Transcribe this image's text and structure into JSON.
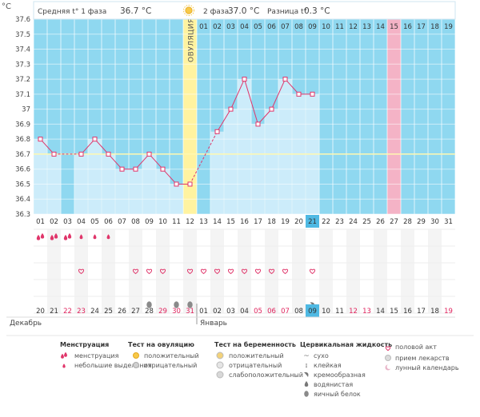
{
  "header": {
    "unit": "°C",
    "phase1_label": "Средняя t° 1 фаза",
    "phase1_value": "36.7 °C",
    "phase2_label": "2 фаза",
    "phase2_value": "37.0 °C",
    "diff_label": "Разница t°",
    "diff_value": "0.3 °C"
  },
  "ovulation_label": "ОВУЛЯЦИЯ",
  "phase2_days": [
    "01",
    "02",
    "03",
    "04",
    "05",
    "06",
    "07",
    "08",
    "09",
    "10",
    "11",
    "12",
    "13",
    "14",
    "15",
    "16",
    "17",
    "18",
    "19"
  ],
  "chart_data": {
    "type": "line",
    "x": [
      "01",
      "02",
      "03",
      "04",
      "05",
      "06",
      "07",
      "08",
      "09",
      "10",
      "11",
      "12",
      "13",
      "14",
      "15",
      "16",
      "17",
      "18",
      "19",
      "20",
      "21",
      "22",
      "23",
      "24",
      "25",
      "26",
      "27",
      "28",
      "29",
      "30",
      "31"
    ],
    "y": [
      36.8,
      36.7,
      null,
      36.7,
      36.8,
      36.7,
      36.6,
      36.6,
      36.7,
      36.6,
      36.5,
      36.5,
      null,
      36.85,
      37.0,
      37.2,
      36.9,
      37.0,
      37.2,
      37.1,
      37.1,
      null,
      null,
      null,
      null,
      null,
      null,
      null,
      null,
      null,
      null
    ],
    "ylim": [
      36.3,
      37.6
    ],
    "yticks": [
      "36.3",
      "36.4",
      "36.5",
      "36.6",
      "36.7",
      "36.8",
      "36.9",
      "37",
      "37.1",
      "37.2",
      "37.3",
      "37.4",
      "37.5",
      "37.6"
    ],
    "coverline": 36.7,
    "ovulation_day": "12",
    "highlight_day": "21",
    "expected_period_day": "27",
    "grid": true
  },
  "calendar": {
    "dates": [
      "20",
      "21",
      "22",
      "23",
      "24",
      "25",
      "26",
      "27",
      "28",
      "29",
      "30",
      "31",
      "01",
      "02",
      "03",
      "04",
      "05",
      "06",
      "07",
      "08",
      "09",
      "10",
      "11",
      "12",
      "13",
      "14",
      "15",
      "16",
      "17",
      "18",
      "19"
    ],
    "holiday_dates": [
      "22",
      "23",
      "29",
      "30",
      "31",
      "05",
      "06",
      "07",
      "12",
      "13",
      "19"
    ],
    "month1": "Декабрь",
    "month2": "Январь",
    "menstruation": [
      "big",
      "big",
      "big",
      "small",
      "small",
      "small",
      null,
      null,
      null,
      null,
      null,
      null,
      null,
      null,
      null,
      null,
      null,
      null,
      null,
      null,
      null,
      null,
      null,
      null,
      null,
      null,
      null,
      null,
      null,
      null,
      null
    ],
    "intercourse": [
      false,
      false,
      false,
      true,
      false,
      false,
      false,
      true,
      true,
      true,
      false,
      true,
      true,
      true,
      true,
      true,
      true,
      true,
      true,
      false,
      true,
      false,
      false,
      false,
      false,
      false,
      false,
      false,
      false,
      false,
      false
    ],
    "fluid": [
      null,
      null,
      null,
      null,
      null,
      null,
      null,
      null,
      "egg",
      null,
      "egg",
      "egg",
      null,
      null,
      null,
      null,
      null,
      null,
      null,
      null,
      "creamy",
      null,
      null,
      null,
      null,
      null,
      null,
      null,
      null,
      null,
      null
    ]
  },
  "legend": {
    "menstruation_title": "Менструация",
    "menstruation_items": [
      "менструация",
      "небольшие выделения"
    ],
    "ovulation_test_title": "Тест на овуляцию",
    "ovulation_test_items": [
      "положительный",
      "отрицательный"
    ],
    "pregnancy_test_title": "Тест на беременность",
    "pregnancy_test_items": [
      "положительный",
      "отрицательный",
      "слабоположительный"
    ],
    "cervical_title": "Цервикальная жидкость",
    "cervical_items": [
      "сухо",
      "клейкая",
      "кремообразная",
      "водянистая",
      "яичный белок"
    ],
    "other_items": [
      "половой акт",
      "прием лекарств",
      "лунный календарь"
    ]
  },
  "colors": {
    "plot_bg": "#8fd8f0",
    "bar": "#ccecfa",
    "line": "#e0356a",
    "ovulation": "#fff3a0",
    "expected_period": "#f4b3c6",
    "highlight": "#4fb9e3",
    "holiday": "#e0245e"
  }
}
